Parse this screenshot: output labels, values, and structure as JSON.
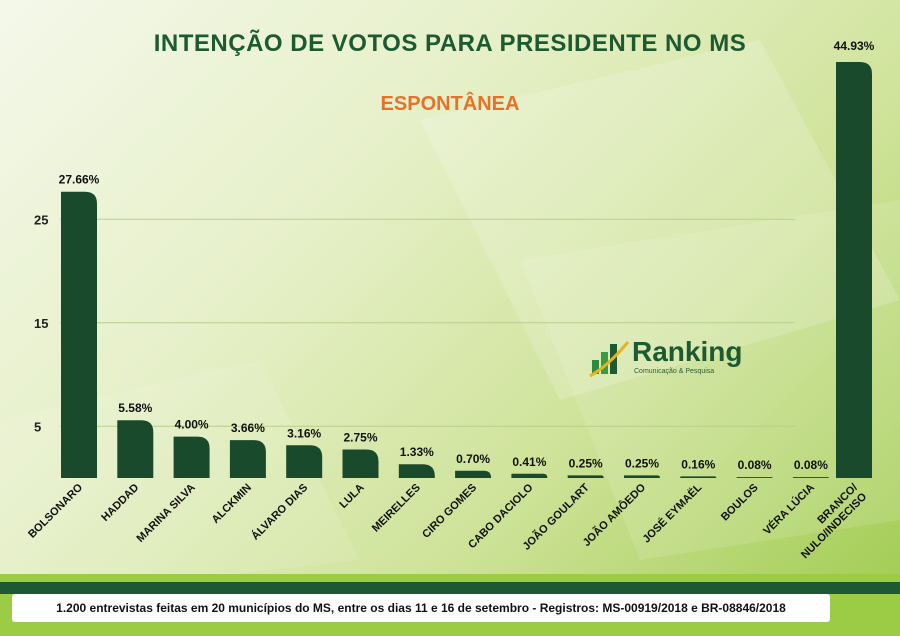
{
  "header": {
    "title": "INTENÇÃO DE VOTOS PARA PRESIDENTE NO MS",
    "subtitle": "ESPONTÂNEA"
  },
  "logo": {
    "name": "Ranking",
    "tagline": "Comunicação & Pesquisa"
  },
  "footer": {
    "note": "1.200 entrevistas feitas em 20 municípios do MS, entre os dias 11 e 16 de setembro - Registros:  MS-00919/2018 e BR-08846/2018"
  },
  "colors": {
    "bar": "#1a4a2c",
    "title": "#1d5a32",
    "subtitle": "#e8712a",
    "footer_band": "#9ccb45"
  },
  "chart_data": {
    "type": "bar",
    "title": "INTENÇÃO DE VOTOS PARA PRESIDENTE NO MS",
    "subtitle": "ESPONTÂNEA",
    "categories": [
      "BOLSONARO",
      "HADDAD",
      "MARINA SILVA",
      "ALCKMIN",
      "ÁLVARO DIAS",
      "LULA",
      "MEIRELLES",
      "CIRO GOMES",
      "CABO DACIOLO",
      "JOÃO GOULART",
      "JOÃO AMÔEDO",
      "JOSÉ EYMAËL",
      "BOULOS",
      "VÉRA LÚCIA",
      "BRANCO/\nNULO/INDECISO"
    ],
    "values": [
      27.66,
      5.58,
      4.0,
      3.66,
      3.16,
      2.75,
      1.33,
      0.7,
      0.41,
      0.25,
      0.25,
      0.16,
      0.08,
      0.08,
      44.93
    ],
    "value_labels": [
      "27.66%",
      "5.58%",
      "4.00%",
      "3.66%",
      "3.16%",
      "2.75%",
      "1.33%",
      "0.70%",
      "0.41%",
      "0.25%",
      "0.25%",
      "0.16%",
      "0.08%",
      "0.08%",
      "44.93%"
    ],
    "yticks": [
      5,
      15,
      25
    ],
    "ylim": [
      0,
      28
    ],
    "xlabel": "",
    "ylabel": "",
    "grid": true
  }
}
